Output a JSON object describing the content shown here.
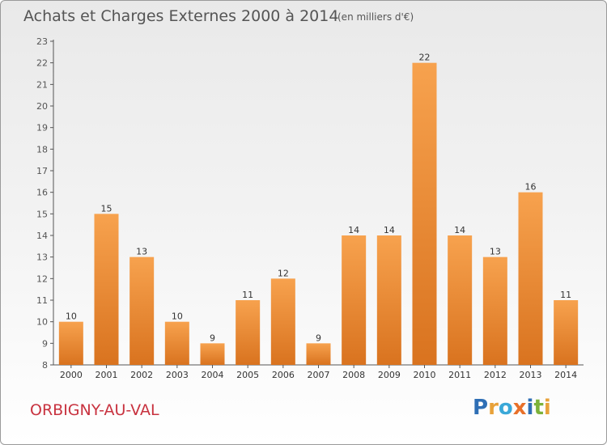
{
  "header": {
    "title": "Achats et Charges Externes 2000 à 2014",
    "unit": "(en milliers d'€)"
  },
  "footer": {
    "commune": "ORBIGNY-AU-VAL",
    "logo": "Proxiti",
    "logo_colors": [
      "#2f6fb5",
      "#e8a23a",
      "#3aa8d8",
      "#e8702a",
      "#2f6fb5",
      "#7cb23a",
      "#e8a23a"
    ]
  },
  "colors": {
    "bar_top": "#f7a24e",
    "bar_bottom": "#d9731f",
    "commune": "#c8323f"
  },
  "chart_data": {
    "type": "bar",
    "title": "Achats et Charges Externes 2000 à 2014",
    "categories": [
      "2000",
      "2001",
      "2002",
      "2003",
      "2004",
      "2005",
      "2006",
      "2007",
      "2008",
      "2009",
      "2010",
      "2011",
      "2012",
      "2013",
      "2014"
    ],
    "values": [
      10,
      15,
      13,
      10,
      9,
      11,
      12,
      9,
      14,
      14,
      22,
      14,
      13,
      16,
      11
    ],
    "value_labels": [
      "10",
      "15",
      "13",
      "10",
      "9",
      "11",
      "12",
      "9",
      "14",
      "14",
      "22",
      "14",
      "13",
      "16",
      "11"
    ],
    "y_ticks": [
      "8",
      "9",
      "10",
      "11",
      "12",
      "13",
      "14",
      "15",
      "16",
      "17",
      "18",
      "19",
      "20",
      "21",
      "22",
      "23"
    ],
    "ylim": [
      8,
      23
    ],
    "grid": false,
    "legend": "none"
  }
}
